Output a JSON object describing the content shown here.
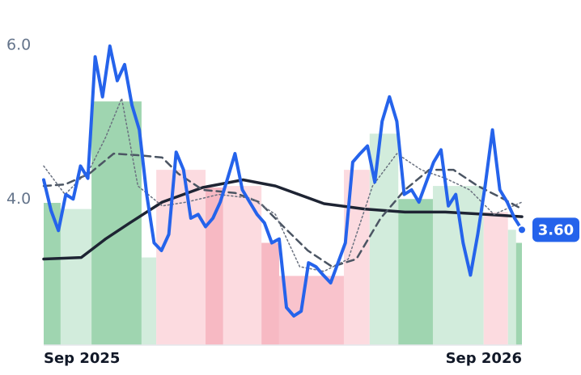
{
  "chart_data": {
    "type": "line",
    "xlim": [
      0,
      65
    ],
    "ylim": [
      2.1,
      6.2
    ],
    "xticks": [
      {
        "value": 0,
        "label": "Sep 2025"
      },
      {
        "value": 65,
        "label": "Sep 2026"
      }
    ],
    "yticks": [
      {
        "value": 4,
        "label": "4.0"
      },
      {
        "value": 6,
        "label": "6.0"
      }
    ],
    "grid": false,
    "bands": [
      {
        "x": [
          0,
          2.3
        ],
        "value": 3.95,
        "color": "#9fd5b0"
      },
      {
        "x": [
          2.3,
          6.5
        ],
        "value": 3.87,
        "color": "#d2ecdc"
      },
      {
        "x": [
          6.5,
          13.3
        ],
        "value": 5.27,
        "color": "#9fd5b0"
      },
      {
        "x": [
          13.3,
          15.3
        ],
        "value": 3.24,
        "color": "#d2ecdc"
      },
      {
        "x": [
          15.3,
          22
        ],
        "value": 4.38,
        "color": "#fcdbe0"
      },
      {
        "x": [
          22,
          24.4
        ],
        "value": 4.15,
        "color": "#f7b9c3"
      },
      {
        "x": [
          24.4,
          29.6
        ],
        "value": 4.17,
        "color": "#fcdbe0"
      },
      {
        "x": [
          29.6,
          32
        ],
        "value": 3.43,
        "color": "#f7b9c3"
      },
      {
        "x": [
          32,
          40.8
        ],
        "value": 3.0,
        "color": "#f9c3cc"
      },
      {
        "x": [
          40.8,
          44.3
        ],
        "value": 4.38,
        "color": "#fcdbe0"
      },
      {
        "x": [
          44.3,
          48.2
        ],
        "value": 4.85,
        "color": "#d2ecdc"
      },
      {
        "x": [
          48.2,
          52.9
        ],
        "value": 4.0,
        "color": "#9fd5b0"
      },
      {
        "x": [
          52.9,
          59.8
        ],
        "value": 4.17,
        "color": "#d2ecdc"
      },
      {
        "x": [
          59.8,
          63.1
        ],
        "value": 3.83,
        "color": "#fcdbe0"
      },
      {
        "x": [
          63.1,
          64.2
        ],
        "value": 3.6,
        "color": "#d2ecdc"
      },
      {
        "x": [
          64.2,
          65
        ],
        "value": 3.43,
        "color": "#9fd5b0"
      }
    ],
    "series": [
      {
        "color": "#1e2433",
        "style": "solid",
        "width": 3.5,
        "x": [
          0,
          5.1,
          8.4,
          11.7,
          16.1,
          21.6,
          27.1,
          31.5,
          38.1,
          43.6,
          49.1,
          54.6,
          60.1,
          65
        ],
        "values": [
          3.22,
          3.24,
          3.48,
          3.69,
          3.96,
          4.15,
          4.25,
          4.17,
          3.94,
          3.87,
          3.83,
          3.83,
          3.8,
          3.77
        ]
      },
      {
        "color": "#4b5563",
        "style": "dashed",
        "width": 2.5,
        "x": [
          0,
          2.9,
          6.2,
          9.5,
          12.8,
          16.1,
          18.3,
          21.6,
          26,
          29.3,
          32.6,
          35.9,
          39.2,
          42.5,
          45.8,
          49.1,
          52.4,
          55.7,
          59,
          62.3,
          65
        ],
        "values": [
          4.17,
          4.19,
          4.33,
          4.59,
          4.57,
          4.54,
          4.33,
          4.12,
          4.08,
          3.96,
          3.64,
          3.33,
          3.12,
          3.22,
          3.75,
          4.12,
          4.38,
          4.38,
          4.17,
          4.01,
          3.87
        ]
      },
      {
        "color": "#6b7280",
        "style": "dotted",
        "width": 1.5,
        "x": [
          0,
          2.9,
          6.2,
          8.4,
          10.6,
          12.8,
          16.1,
          19.4,
          23.8,
          28.2,
          31.5,
          34.8,
          38.1,
          41.4,
          44.7,
          48,
          51.3,
          54.6,
          57.9,
          61.2,
          65
        ],
        "values": [
          4.43,
          4.06,
          4.38,
          4.8,
          5.31,
          4.17,
          3.91,
          3.96,
          4.06,
          4.01,
          3.8,
          3.12,
          3.06,
          3.22,
          4.17,
          4.59,
          4.38,
          4.27,
          4.12,
          3.8,
          3.96
        ]
      },
      {
        "color": "#2563eb",
        "style": "solid",
        "width": 4,
        "values": [
          4.25,
          3.85,
          3.59,
          4.06,
          4.0,
          4.43,
          4.27,
          5.85,
          5.33,
          5.99,
          5.54,
          5.75,
          5.22,
          4.9,
          4.06,
          3.43,
          3.33,
          3.54,
          4.61,
          4.38,
          3.75,
          3.8,
          3.64,
          3.75,
          3.96,
          4.27,
          4.59,
          4.12,
          3.96,
          3.8,
          3.69,
          3.43,
          3.48,
          2.59,
          2.48,
          2.54,
          3.17,
          3.12,
          3.01,
          2.91,
          3.17,
          3.43,
          4.48,
          4.59,
          4.69,
          4.22,
          5.01,
          5.33,
          5.01,
          4.06,
          4.12,
          3.96,
          4.22,
          4.48,
          4.64,
          3.91,
          4.06,
          3.43,
          3.01,
          3.54,
          4.17,
          4.9,
          4.12,
          3.96,
          3.75,
          3.6
        ],
        "value_labels": [
          null,
          null,
          null,
          null,
          null,
          null,
          null,
          null,
          null,
          null,
          null,
          null,
          null,
          null,
          null,
          null,
          null,
          null,
          null,
          null,
          null,
          null,
          null,
          null,
          null,
          null,
          null,
          null,
          null,
          null,
          null,
          null,
          null,
          null,
          null,
          null,
          null,
          null,
          null,
          null,
          null,
          null,
          null,
          null,
          null,
          null,
          null,
          null,
          null,
          null,
          null,
          null,
          null,
          null,
          null,
          null,
          null,
          null,
          null,
          null,
          null,
          null,
          null,
          null,
          null,
          "3.60"
        ]
      }
    ]
  }
}
